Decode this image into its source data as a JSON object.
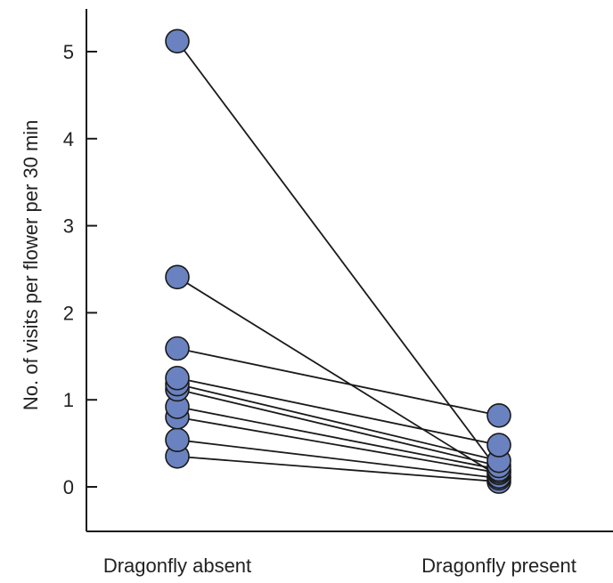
{
  "chart_data": {
    "type": "line",
    "title": "",
    "xlabel": "",
    "ylabel": "No. of visits per flower per 30 min",
    "categories": [
      "Dragonfly absent",
      "Dragonfly present"
    ],
    "ylim": [
      0,
      5.3
    ],
    "yticks": [
      0,
      1,
      2,
      3,
      4,
      5
    ],
    "grid": false,
    "legend": "none",
    "pairs": [
      {
        "absent": 5.12,
        "present": 0.18
      },
      {
        "absent": 2.41,
        "present": 0.12
      },
      {
        "absent": 1.59,
        "present": 0.82
      },
      {
        "absent": 1.25,
        "present": 0.48
      },
      {
        "absent": 1.18,
        "present": 0.3
      },
      {
        "absent": 1.12,
        "present": 0.24
      },
      {
        "absent": 0.92,
        "present": 0.2
      },
      {
        "absent": 0.8,
        "present": 0.16
      },
      {
        "absent": 0.54,
        "present": 0.1
      },
      {
        "absent": 0.35,
        "present": 0.06
      }
    ],
    "colors": {
      "marker_fill": "#6a82c0",
      "marker_stroke": "#1a1a1a",
      "line": "#1a1a1a",
      "axis": "#1a1a1a"
    }
  }
}
